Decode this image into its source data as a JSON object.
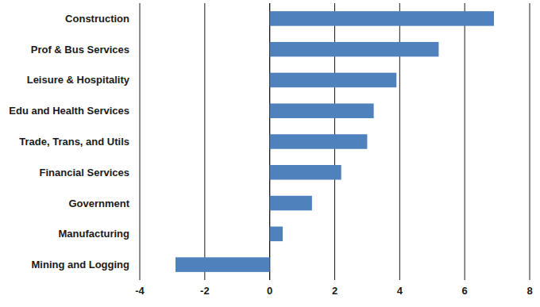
{
  "chart_data": {
    "type": "bar",
    "orientation": "horizontal",
    "categories": [
      "Construction",
      "Prof & Bus Services",
      "Leisure & Hospitality",
      "Edu and Health Services",
      "Trade, Trans, and Utils",
      "Financial Services",
      "Government",
      "Manufacturing",
      "Mining and Logging"
    ],
    "values": [
      6.9,
      5.2,
      3.9,
      3.2,
      3.0,
      2.2,
      1.3,
      0.4,
      -2.9
    ],
    "color": "#4f81bd",
    "xlim": [
      -4,
      8
    ],
    "xticks": [
      -4,
      -2,
      0,
      2,
      4,
      6,
      8
    ],
    "grid": true
  }
}
